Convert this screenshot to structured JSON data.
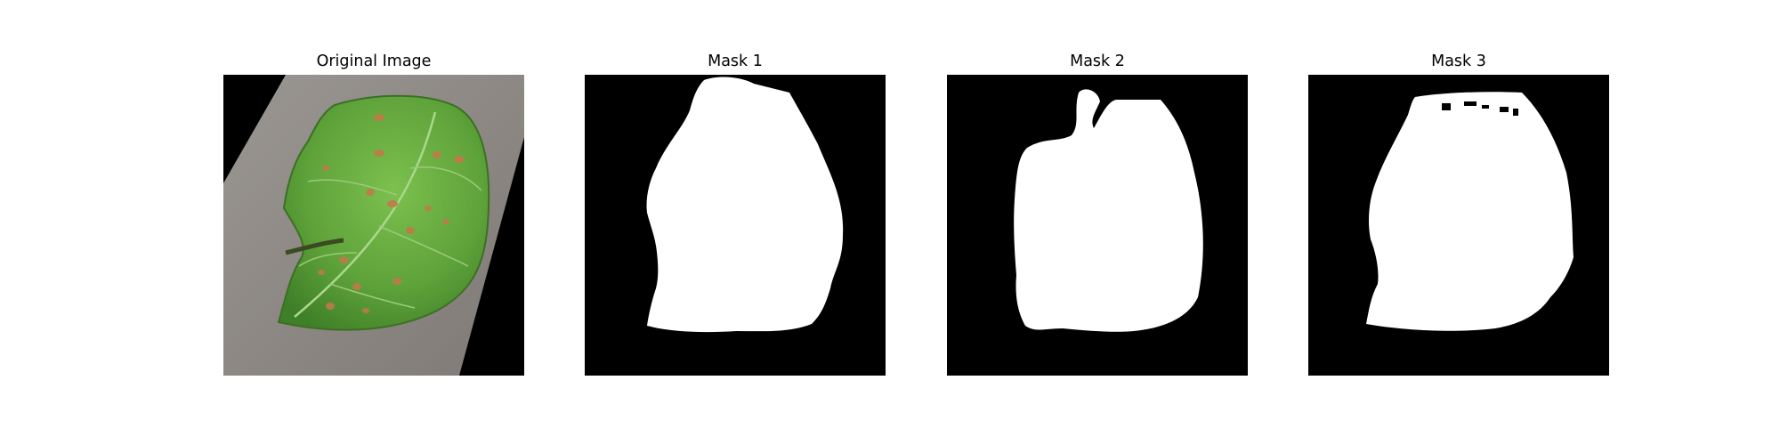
{
  "figure": {
    "panels": [
      {
        "title": "Original Image",
        "content": "leaf-photo"
      },
      {
        "title": "Mask 1",
        "content": "binary-mask"
      },
      {
        "title": "Mask 2",
        "content": "binary-mask"
      },
      {
        "title": "Mask 3",
        "content": "binary-mask"
      }
    ]
  },
  "colors": {
    "background": "#ffffff",
    "mask_background": "#000000",
    "mask_foreground": "#ffffff",
    "leaf_green": "#5fa33c",
    "backdrop_gray": "#8e8985"
  }
}
